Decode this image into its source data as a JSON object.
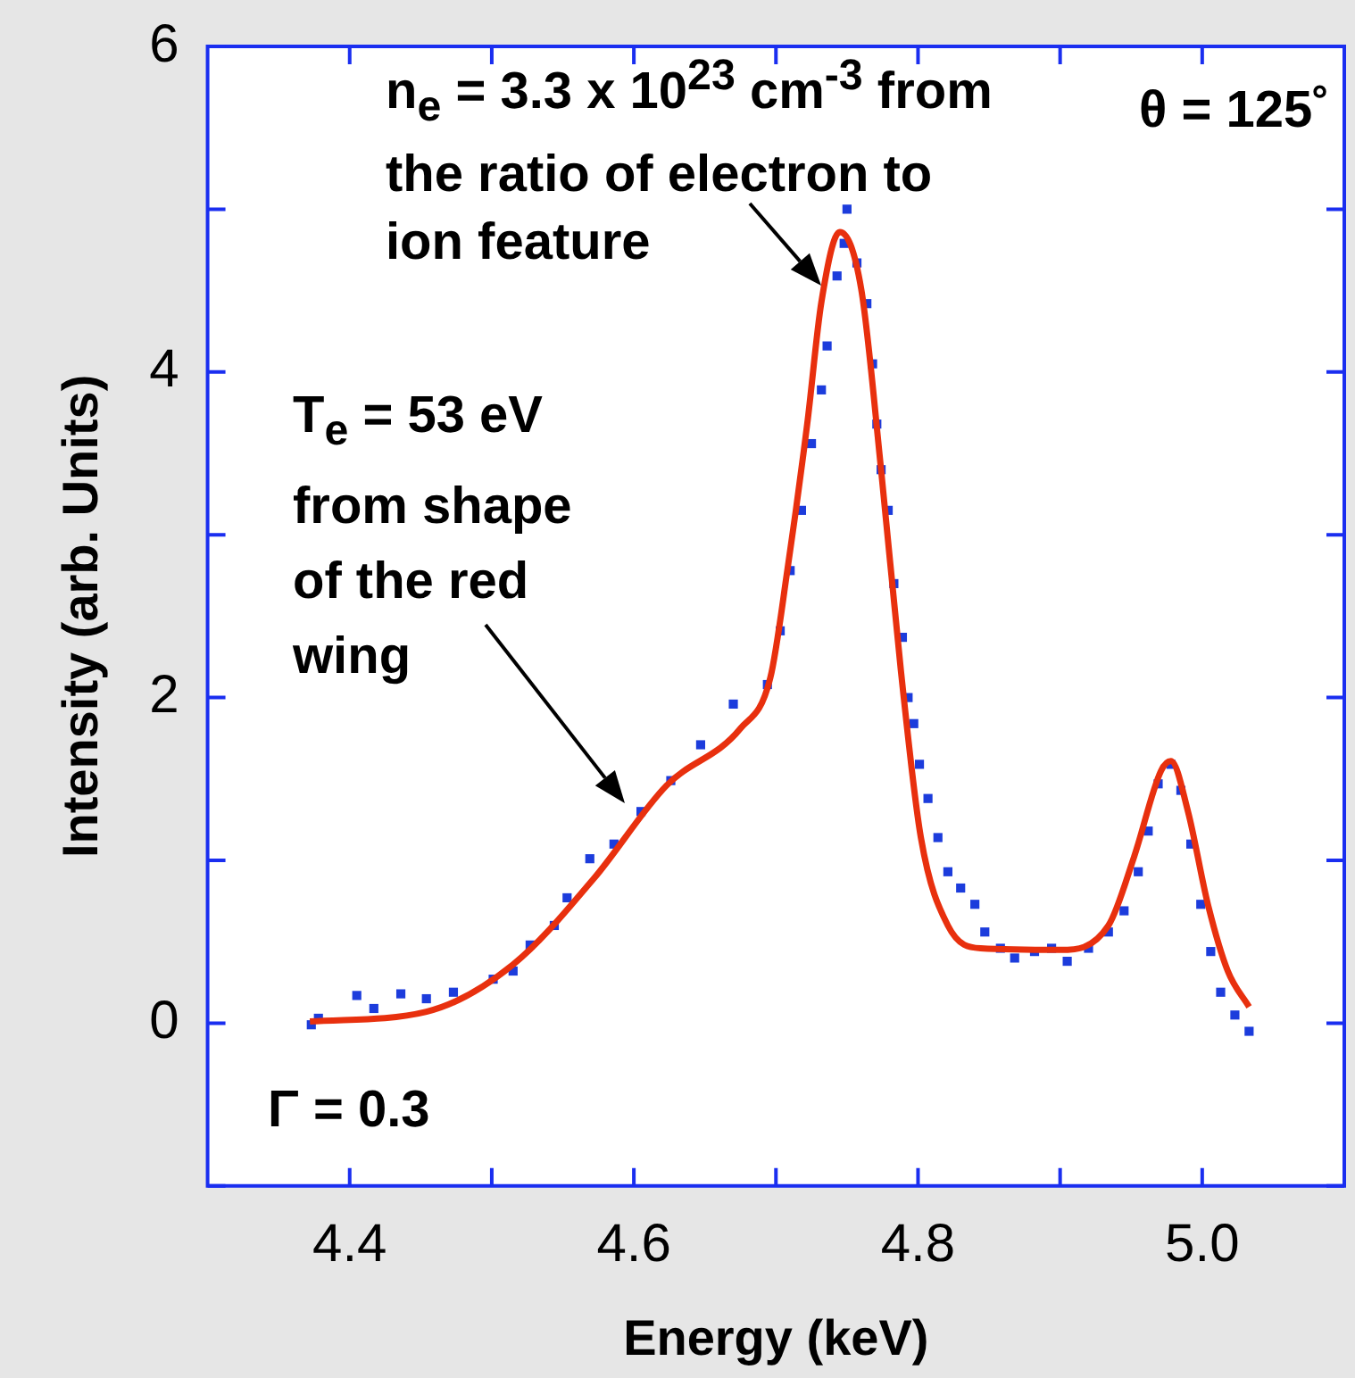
{
  "chart_data": {
    "type": "scatter",
    "xlabel": "Energy (keV)",
    "ylabel": "Intensity (arb. Units)",
    "xlim": [
      4.3,
      5.1
    ],
    "xticks": [
      4.4,
      {
        "value": 4.5,
        "label": null
      },
      4.6,
      {
        "value": 4.7,
        "label": null
      },
      4.8,
      {
        "value": 4.9,
        "label": null
      },
      {
        "value": 5.0,
        "label": "5.0"
      }
    ],
    "ylim": [
      -1,
      6
    ],
    "yticks": [
      {
        "value": -1,
        "label": null
      },
      0,
      {
        "value": 1,
        "label": null
      },
      2,
      {
        "value": 3,
        "label": null
      },
      4,
      {
        "value": 5,
        "label": null
      },
      6
    ],
    "grid": false,
    "legend": false,
    "series": [
      {
        "type": "line",
        "marker": "none",
        "line_style": "solid",
        "color": "#e8300e",
        "x": [
          4.372,
          4.454,
          4.515,
          4.572,
          4.623,
          4.675,
          4.696,
          4.708,
          4.722,
          4.732,
          4.745,
          4.76,
          4.774,
          4.788,
          4.802,
          4.821,
          4.844,
          4.9,
          4.934,
          4.952,
          4.971,
          4.978,
          4.99,
          5.004,
          5.018,
          5.033
        ],
        "values": [
          0.01,
          0.07,
          0.36,
          0.89,
          1.46,
          1.81,
          2.12,
          2.78,
          3.68,
          4.43,
          4.86,
          4.51,
          3.4,
          2.16,
          1.14,
          0.6,
          0.46,
          0.45,
          0.6,
          1.02,
          1.55,
          1.61,
          1.3,
          0.73,
          0.32,
          0.1
        ]
      },
      {
        "marker": "square",
        "color": "#1c3cdc",
        "x": [
          4.373,
          4.378,
          4.405,
          4.417,
          4.436,
          4.454,
          4.473,
          4.501,
          4.515,
          4.527,
          4.544,
          4.553,
          4.569,
          4.586,
          4.605,
          4.626,
          4.647,
          4.67,
          4.694,
          4.703,
          4.71,
          4.718,
          4.725,
          4.732,
          4.736,
          4.743,
          4.748,
          4.75,
          4.757,
          4.764,
          4.768,
          4.771,
          4.774,
          4.779,
          4.783,
          4.789,
          4.793,
          4.797,
          4.801,
          4.807,
          4.814,
          4.821,
          4.83,
          4.84,
          4.847,
          4.858,
          4.868,
          4.882,
          4.894,
          4.905,
          4.92,
          4.934,
          4.945,
          4.955,
          4.962,
          4.969,
          4.978,
          4.985,
          4.992,
          4.999,
          5.006,
          5.013,
          5.023,
          5.033
        ],
        "values": [
          -0.01,
          0.03,
          0.17,
          0.09,
          0.18,
          0.15,
          0.19,
          0.27,
          0.32,
          0.48,
          0.6,
          0.77,
          1.01,
          1.1,
          1.3,
          1.49,
          1.71,
          1.96,
          2.08,
          2.41,
          2.78,
          3.15,
          3.56,
          3.89,
          4.16,
          4.59,
          4.79,
          5.0,
          4.67,
          4.42,
          4.05,
          3.68,
          3.4,
          3.15,
          2.7,
          2.37,
          2.0,
          1.84,
          1.59,
          1.38,
          1.14,
          0.93,
          0.83,
          0.73,
          0.56,
          0.46,
          0.4,
          0.44,
          0.46,
          0.38,
          0.46,
          0.56,
          0.69,
          0.93,
          1.18,
          1.47,
          1.59,
          1.43,
          1.1,
          0.73,
          0.44,
          0.19,
          0.05,
          -0.05
        ]
      }
    ],
    "annotations": [
      "n$_{e}$ = 3.3 x 10$^{23}$ cm$^{-3}$ from the ratio of electron to ion feature",
      "T$_{e}$ = 53 eV from shape of the red wing",
      "θ = 125˚",
      "Γ = 0.3"
    ]
  }
}
